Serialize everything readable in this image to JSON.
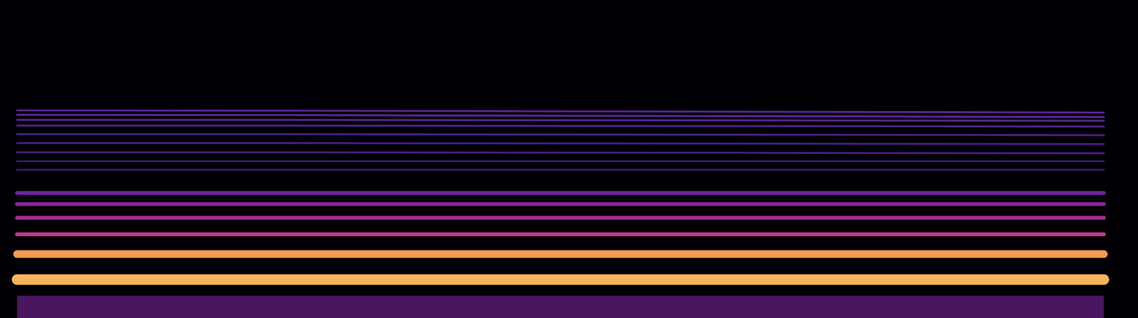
{
  "chart_data": {
    "type": "spectrogram",
    "tick_labels": false,
    "grid": false,
    "x": [
      1.5,
      25,
      50,
      75,
      97
    ],
    "xlim": [
      0,
      100
    ],
    "ylim": [
      0,
      100
    ],
    "series": [
      {
        "type": "area",
        "color": "#5c1c78",
        "values": [
          7,
          7,
          7,
          7,
          7
        ]
      },
      {
        "type": "line",
        "color": "#f8b45c",
        "values": [
          12.1,
          12.1,
          12.1,
          12.1,
          12.1
        ]
      },
      {
        "type": "line",
        "color": "#f59a4e",
        "values": [
          20.1,
          20.1,
          20.1,
          20.1,
          20.1
        ]
      },
      {
        "type": "line",
        "color": "#c4398a",
        "values": [
          26.3,
          26.3,
          26.3,
          26.3,
          26.3
        ]
      },
      {
        "type": "line",
        "color": "#a22c96",
        "values": [
          31.5,
          31.5,
          31.5,
          31.5,
          31.5
        ]
      },
      {
        "type": "line",
        "color": "#8a26a0",
        "values": [
          35.8,
          35.8,
          35.8,
          35.8,
          35.8
        ]
      },
      {
        "type": "line",
        "color": "#6e22a0",
        "values": [
          39.3,
          39.3,
          39.3,
          39.3,
          39.3
        ]
      },
      {
        "type": "line",
        "color": "#3a1a6a",
        "values": [
          46.6,
          46.6,
          46.6,
          46.6,
          46.6
        ]
      },
      {
        "type": "line",
        "color": "#3a1a6a",
        "values": [
          49.3,
          49.3,
          49.3,
          49.3,
          49.3
        ]
      },
      {
        "type": "line",
        "color": "#4a1e80",
        "values": [
          52.1,
          52.1,
          52.0,
          51.9,
          51.8
        ]
      },
      {
        "type": "line",
        "color": "#4a1e80",
        "values": [
          55.0,
          55.0,
          54.9,
          54.8,
          54.7
        ]
      },
      {
        "type": "line",
        "color": "#4e2088",
        "values": [
          57.8,
          57.8,
          57.7,
          57.6,
          57.5
        ]
      },
      {
        "type": "line",
        "color": "#542290",
        "values": [
          60.5,
          60.5,
          60.4,
          60.3,
          60.2
        ]
      },
      {
        "type": "line",
        "color": "#5a2498",
        "values": [
          62.3,
          62.3,
          62.2,
          62.1,
          62.0
        ]
      },
      {
        "type": "line",
        "color": "#6026a0",
        "values": [
          63.9,
          63.8,
          63.6,
          63.4,
          63.2
        ]
      },
      {
        "type": "line",
        "color": "#5a2498",
        "values": [
          65.3,
          65.2,
          65.0,
          64.8,
          64.6
        ]
      }
    ]
  }
}
